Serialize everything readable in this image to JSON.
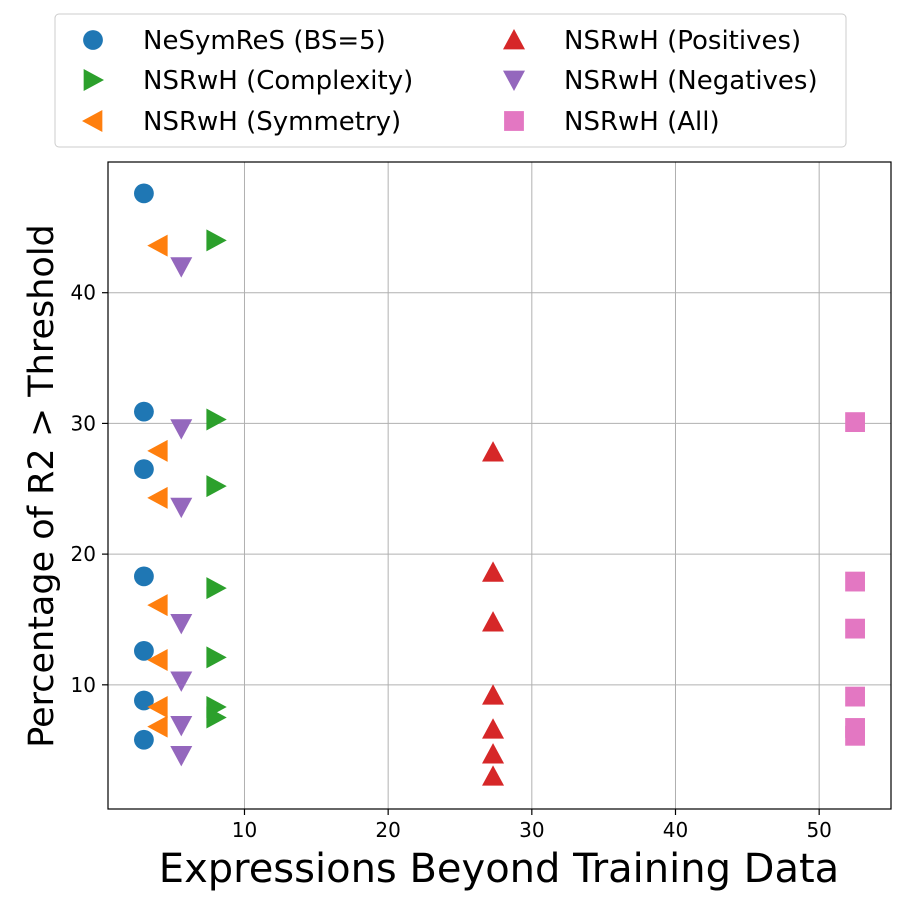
{
  "chart_data": {
    "type": "scatter",
    "title": "",
    "xlabel": "Expressions Beyond Training Data",
    "ylabel": "Percentage of R2 > Threshold",
    "xlim": [
      0.5,
      55
    ],
    "ylim": [
      0.5,
      50
    ],
    "xticks": [
      10,
      20,
      30,
      40,
      50
    ],
    "yticks": [
      10,
      20,
      30,
      40
    ],
    "grid": true,
    "legend_position": "top",
    "series": [
      {
        "name": "NeSymReS (BS=5)",
        "marker": "circle",
        "color": "#1f77b4",
        "points": [
          [
            3.0,
            47.6
          ],
          [
            3.0,
            30.9
          ],
          [
            3.0,
            26.5
          ],
          [
            3.0,
            18.3
          ],
          [
            3.0,
            12.6
          ],
          [
            3.0,
            8.8
          ],
          [
            3.0,
            5.8
          ]
        ]
      },
      {
        "name": "NSRwH (Complexity)",
        "marker": "triangle-right",
        "color": "#2ca02c",
        "points": [
          [
            8.0,
            44.0
          ],
          [
            8.0,
            30.3
          ],
          [
            8.0,
            25.2
          ],
          [
            8.0,
            17.4
          ],
          [
            8.0,
            12.1
          ],
          [
            8.0,
            8.3
          ],
          [
            8.0,
            7.5
          ]
        ]
      },
      {
        "name": "NSRwH (Symmetry)",
        "marker": "triangle-left",
        "color": "#ff7f0e",
        "points": [
          [
            4.0,
            43.6
          ],
          [
            4.0,
            27.9
          ],
          [
            4.0,
            24.3
          ],
          [
            4.0,
            16.1
          ],
          [
            4.0,
            11.9
          ],
          [
            4.0,
            8.3
          ],
          [
            4.0,
            6.8
          ]
        ]
      },
      {
        "name": "NSRwH (Positives)",
        "marker": "triangle-up",
        "color": "#d62728",
        "points": [
          [
            27.3,
            27.8
          ],
          [
            27.3,
            18.6
          ],
          [
            27.3,
            14.8
          ],
          [
            27.3,
            9.2
          ],
          [
            27.3,
            6.6
          ],
          [
            27.3,
            4.7
          ],
          [
            27.3,
            3.0
          ]
        ]
      },
      {
        "name": "NSRwH (Negatives)",
        "marker": "triangle-down",
        "color": "#9467bd",
        "points": [
          [
            5.6,
            42.0
          ],
          [
            5.6,
            29.6
          ],
          [
            5.6,
            23.6
          ],
          [
            5.6,
            14.7
          ],
          [
            5.6,
            10.3
          ],
          [
            5.6,
            6.9
          ],
          [
            5.6,
            4.6
          ]
        ]
      },
      {
        "name": "NSRwH (All)",
        "marker": "square",
        "color": "#e377c2",
        "points": [
          [
            52.5,
            30.1
          ],
          [
            52.5,
            17.9
          ],
          [
            52.5,
            14.3
          ],
          [
            52.5,
            9.1
          ],
          [
            52.5,
            6.7
          ],
          [
            52.5,
            6.1
          ]
        ]
      }
    ]
  }
}
